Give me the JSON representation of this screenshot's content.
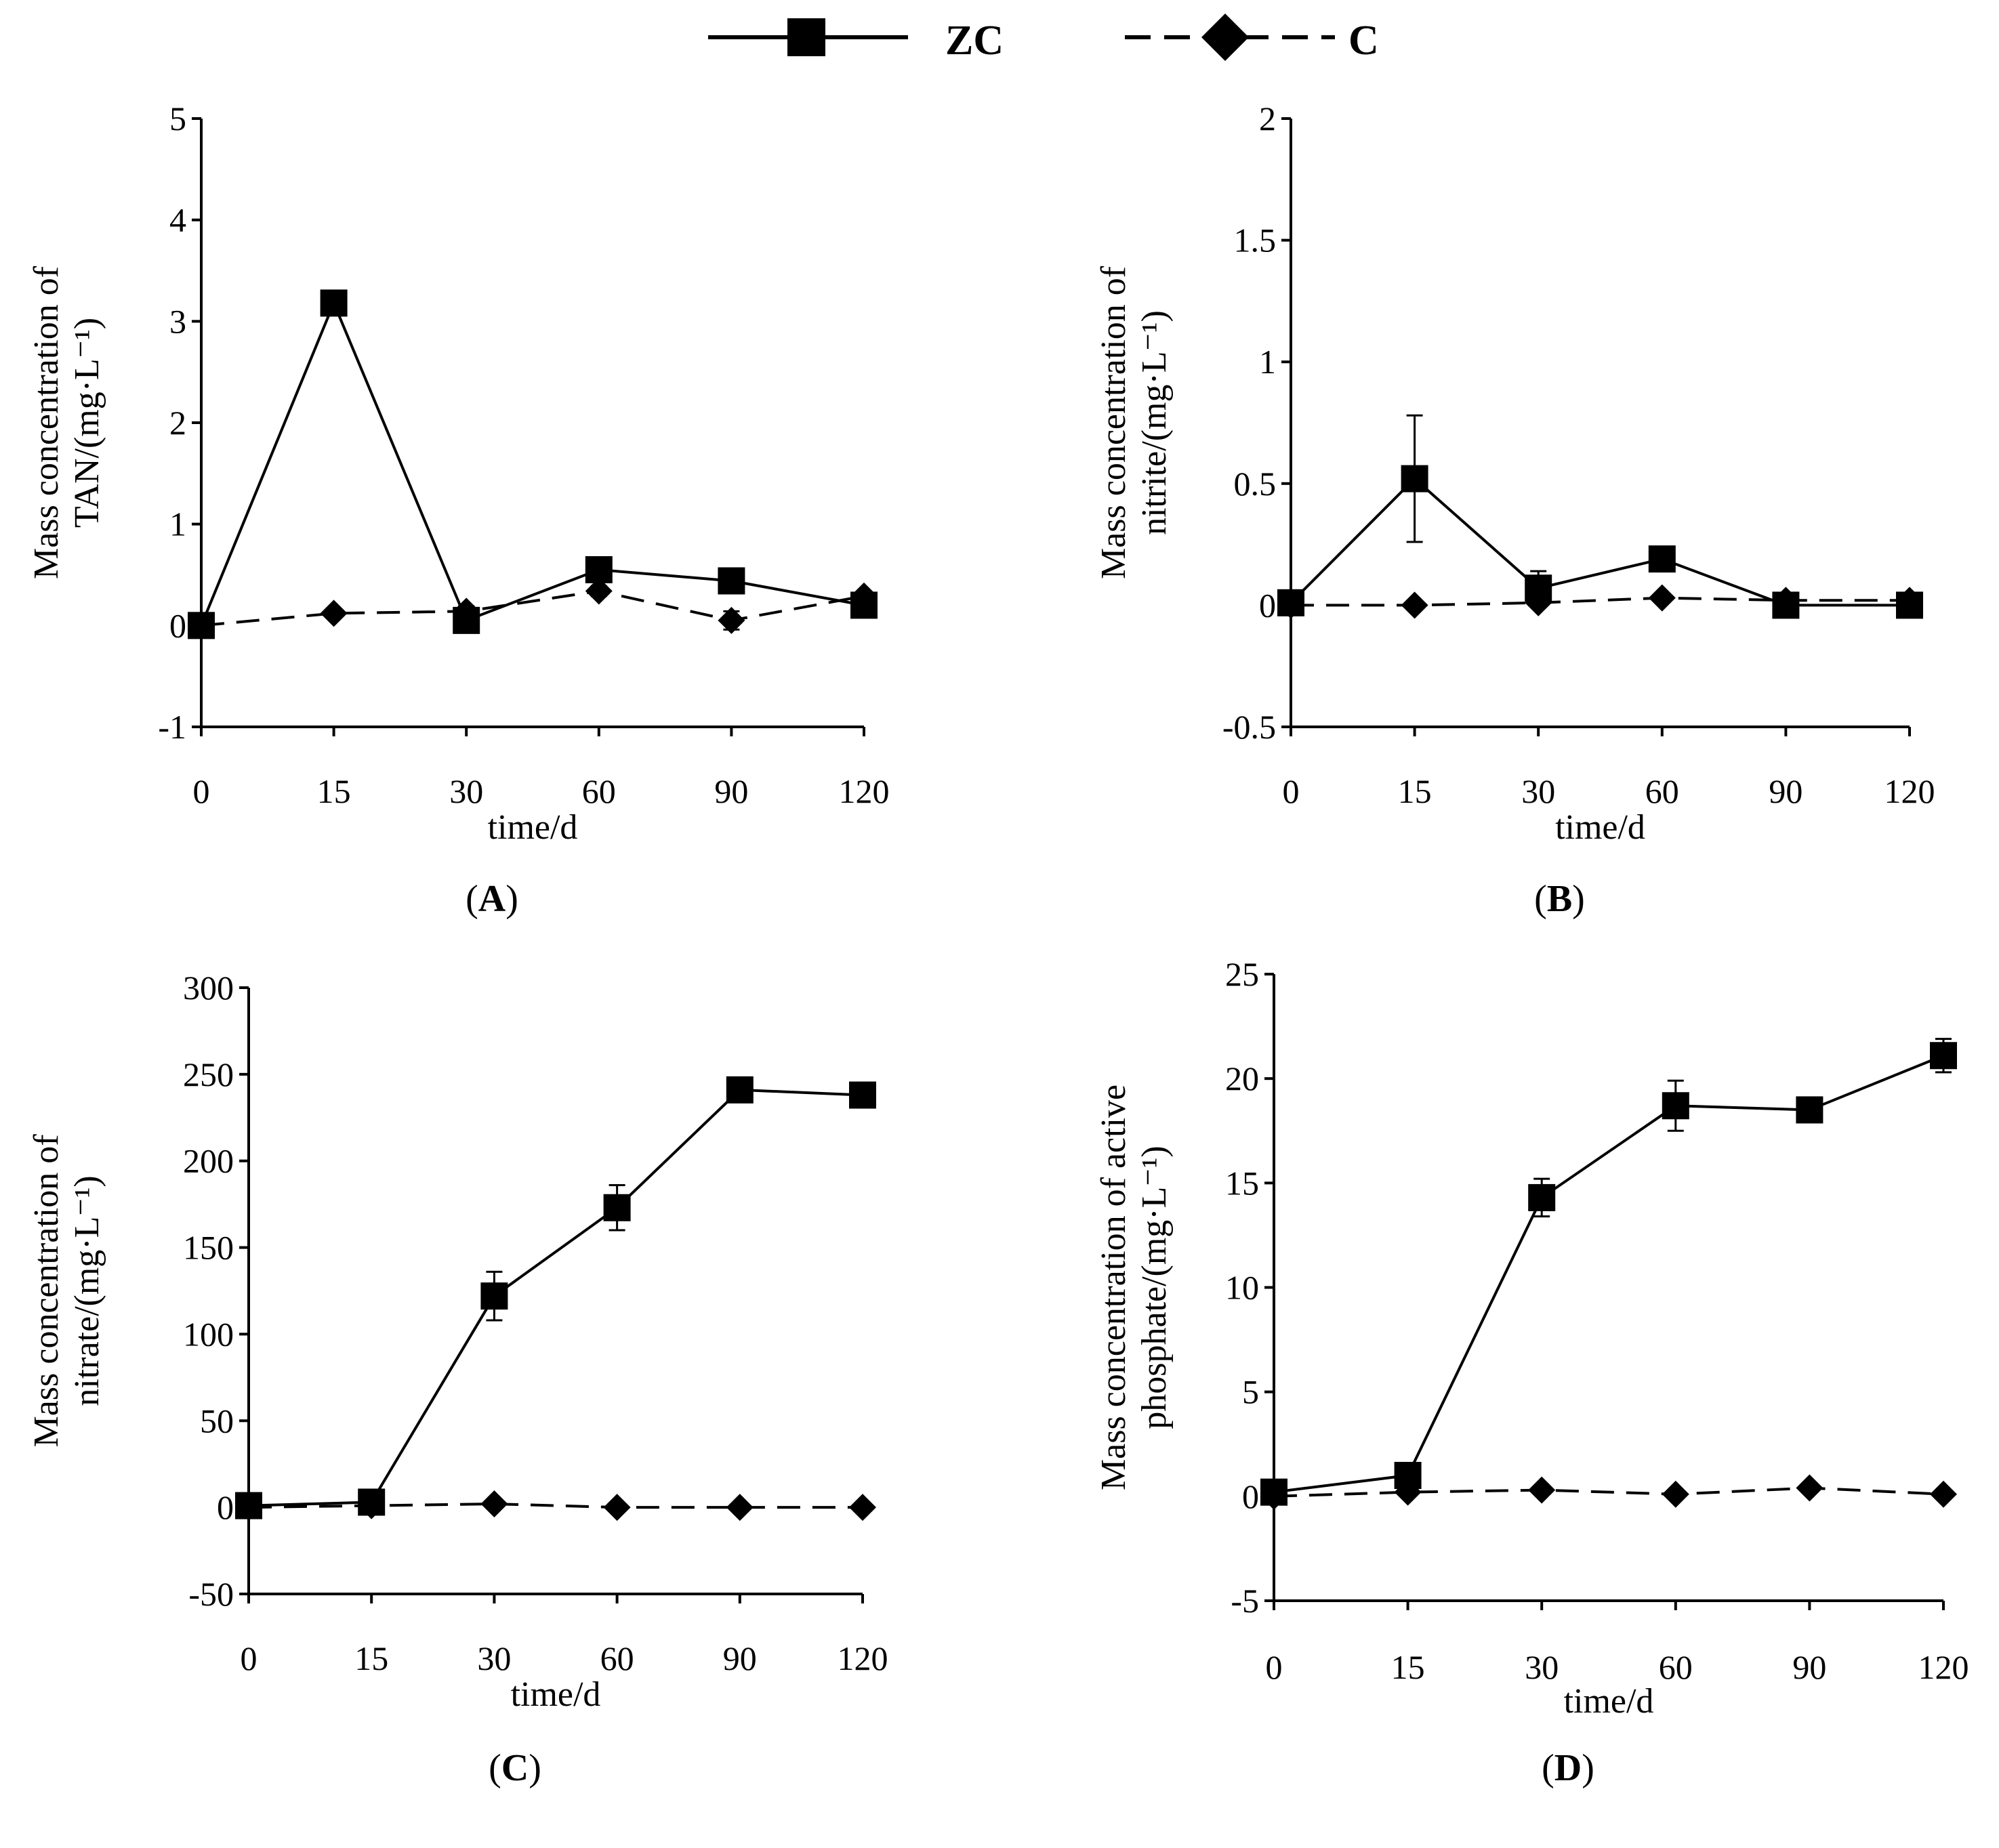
{
  "legend": {
    "series": [
      {
        "name": "ZC",
        "marker": "square",
        "line": "solid"
      },
      {
        "name": "C",
        "marker": "diamond",
        "line": "dashed"
      }
    ]
  },
  "chart_data": [
    {
      "id": "A",
      "panel_label": "A",
      "type": "line",
      "xlabel": "time/d",
      "ylabel_lines": [
        "Mass concentration of",
        "TAN/(mg·L⁻¹)"
      ],
      "categories": [
        "0",
        "15",
        "30",
        "60",
        "90",
        "120"
      ],
      "ylim": [
        -1,
        5
      ],
      "yticks": [
        -1,
        0,
        1,
        2,
        3,
        4,
        5
      ],
      "series": [
        {
          "name": "ZC",
          "values": [
            0,
            3.18,
            0.05,
            0.55,
            0.44,
            0.2
          ],
          "errors": [
            0,
            0.05,
            0.05,
            0.12,
            0.04,
            0.05
          ]
        },
        {
          "name": "C",
          "values": [
            0,
            0.12,
            0.14,
            0.34,
            0.05,
            0.29
          ],
          "errors": [
            0,
            0,
            0.05,
            0.05,
            0.09,
            0.03
          ]
        }
      ]
    },
    {
      "id": "B",
      "panel_label": "B",
      "type": "line",
      "xlabel": "time/d",
      "ylabel_lines": [
        "Mass concentration of",
        "nitrite/(mg·L⁻¹)"
      ],
      "categories": [
        "0",
        "15",
        "30",
        "60",
        "90",
        "120"
      ],
      "ylim": [
        -0.5,
        2
      ],
      "yticks": [
        -0.5,
        0,
        0.5,
        1,
        1.5,
        2
      ],
      "series": [
        {
          "name": "ZC",
          "values": [
            0.01,
            0.52,
            0.07,
            0.19,
            0.0,
            0.0
          ],
          "errors": [
            0,
            0.26,
            0.07,
            0.02,
            0.01,
            0.01
          ]
        },
        {
          "name": "C",
          "values": [
            0.0,
            0.0,
            0.01,
            0.03,
            0.02,
            0.02
          ],
          "errors": [
            0,
            0,
            0,
            0.01,
            0.01,
            0.01
          ]
        }
      ]
    },
    {
      "id": "C",
      "panel_label": "C",
      "type": "line",
      "xlabel": "time/d",
      "ylabel_lines": [
        "Mass concentration of",
        "nitrate/(mg·L⁻¹)"
      ],
      "categories": [
        "0",
        "15",
        "30",
        "60",
        "90",
        "120"
      ],
      "ylim": [
        -50,
        300
      ],
      "yticks": [
        -50,
        0,
        50,
        100,
        150,
        200,
        250,
        300
      ],
      "series": [
        {
          "name": "ZC",
          "values": [
            1,
            3,
            122,
            173,
            241,
            238
          ],
          "errors": [
            0,
            1,
            14,
            13,
            3,
            3
          ]
        },
        {
          "name": "C",
          "values": [
            0,
            1,
            2,
            0,
            0,
            0
          ],
          "errors": [
            0,
            0,
            0,
            0,
            0,
            0
          ]
        }
      ]
    },
    {
      "id": "D",
      "panel_label": "D",
      "type": "line",
      "xlabel": "time/d",
      "ylabel_lines": [
        "Mass concentration of active",
        "phosphate/(mg·L⁻¹)"
      ],
      "categories": [
        "0",
        "15",
        "30",
        "60",
        "90",
        "120"
      ],
      "ylim": [
        -5,
        25
      ],
      "yticks": [
        -5,
        0,
        5,
        10,
        15,
        20,
        25
      ],
      "series": [
        {
          "name": "ZC",
          "values": [
            0.2,
            1.0,
            14.3,
            18.7,
            18.5,
            21.1
          ],
          "errors": [
            0,
            0.4,
            0.9,
            1.2,
            0.3,
            0.8
          ]
        },
        {
          "name": "C",
          "values": [
            0,
            0.2,
            0.3,
            0.1,
            0.4,
            0.1
          ],
          "errors": [
            0,
            0,
            0,
            0,
            0,
            0
          ]
        }
      ]
    }
  ]
}
